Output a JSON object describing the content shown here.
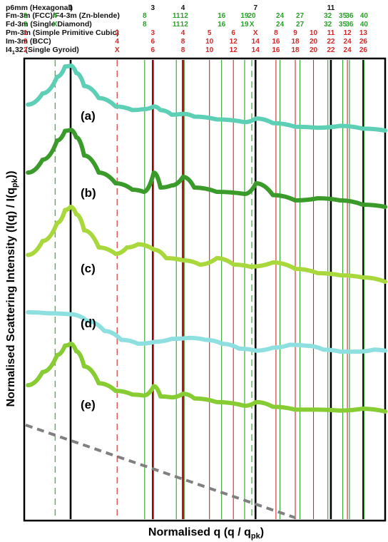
{
  "chart_data": {
    "type": "line",
    "xlabel": "Normalised q (q / q",
    "xlabel_sub": "pk",
    "xlabel_end": ")",
    "ylabel": "Normalised Scattering Intensity (I(q) / I(q",
    "ylabel_sub": "pk",
    "ylabel_end": "))",
    "grid": false,
    "x_range": [
      0.6,
      3.8
    ],
    "phases": [
      {
        "name": "p6mm (Hexagonal)",
        "color": "#111111",
        "labels": [
          {
            "text": "1",
            "q": 1.0
          },
          {
            "text": "3",
            "q": 1.732
          },
          {
            "text": "4",
            "q": 2.0
          },
          {
            "text": "7",
            "q": 2.646
          },
          {
            "text": "11",
            "q": 3.317
          }
        ]
      },
      {
        "name": "Fm-3m (FCC)/F4-3m (Zn-blende)",
        "color": "#2ca02c",
        "labels": [
          {
            "text": "3",
            "q": 0.598
          },
          {
            "text": "4",
            "q": 0.862
          },
          {
            "text": "8",
            "q": 1.659
          },
          {
            "text": "11",
            "q": 1.941
          },
          {
            "text": "12",
            "q": 2.011
          },
          {
            "text": "16",
            "q": 2.344
          },
          {
            "text": "19",
            "q": 2.549
          },
          {
            "text": "20",
            "q": 2.613
          },
          {
            "text": "24",
            "q": 2.864
          },
          {
            "text": "27",
            "q": 3.042
          },
          {
            "text": "32",
            "q": 3.29
          },
          {
            "text": "35",
            "q": 3.423
          },
          {
            "text": "36",
            "q": 3.482
          },
          {
            "text": "40",
            "q": 3.612
          }
        ]
      },
      {
        "name": "Fd-3m (Single Diamond)",
        "color": "#2ca02c",
        "labels": [
          {
            "text": "3",
            "q": 0.598
          },
          {
            "text": "X",
            "q": 0.862
          },
          {
            "text": "8",
            "q": 1.659
          },
          {
            "text": "11",
            "q": 1.941
          },
          {
            "text": "12",
            "q": 2.011
          },
          {
            "text": "16",
            "q": 2.344
          },
          {
            "text": "19",
            "q": 2.549
          },
          {
            "text": "X",
            "q": 2.613
          },
          {
            "text": "24",
            "q": 2.864
          },
          {
            "text": "27",
            "q": 3.042
          },
          {
            "text": "32",
            "q": 3.29
          },
          {
            "text": "35",
            "q": 3.423
          },
          {
            "text": "36",
            "q": 3.482
          },
          {
            "text": "40",
            "q": 3.612
          }
        ]
      },
      {
        "name": "Pm-3m (Simple Primitive Cubic)",
        "color": "#d62728",
        "labels": [
          {
            "text": "1",
            "q": 0.598
          },
          {
            "text": "2",
            "q": 1.414
          },
          {
            "text": "3",
            "q": 1.732
          },
          {
            "text": "4",
            "q": 2.0
          },
          {
            "text": "5",
            "q": 2.236
          },
          {
            "text": "6",
            "q": 2.449
          },
          {
            "text": "X",
            "q": 2.646
          },
          {
            "text": "8",
            "q": 2.828
          },
          {
            "text": "9",
            "q": 3.0
          },
          {
            "text": "10",
            "q": 3.162
          },
          {
            "text": "11",
            "q": 3.317
          },
          {
            "text": "12",
            "q": 3.464
          },
          {
            "text": "13",
            "q": 3.606
          }
        ]
      },
      {
        "name": "Im-3m (BCC)",
        "color": "#d62728",
        "labels": [
          {
            "text": "2",
            "q": 0.598
          },
          {
            "text": "4",
            "q": 1.414
          },
          {
            "text": "6",
            "q": 1.732
          },
          {
            "text": "8",
            "q": 2.0
          },
          {
            "text": "10",
            "q": 2.236
          },
          {
            "text": "12",
            "q": 2.449
          },
          {
            "text": "14",
            "q": 2.646
          },
          {
            "text": "16",
            "q": 2.828
          },
          {
            "text": "18",
            "q": 3.0
          },
          {
            "text": "20",
            "q": 3.162
          },
          {
            "text": "22",
            "q": 3.317
          },
          {
            "text": "24",
            "q": 3.464
          },
          {
            "text": "26",
            "q": 3.606
          }
        ]
      },
      {
        "name": "I4",
        "name_sub": "1",
        "name_end": "32 (Single Gyroid)",
        "color": "#d62728",
        "labels": [
          {
            "text": "2",
            "q": 0.598
          },
          {
            "text": "X",
            "q": 1.414
          },
          {
            "text": "6",
            "q": 1.732
          },
          {
            "text": "8",
            "q": 2.0
          },
          {
            "text": "10",
            "q": 2.236
          },
          {
            "text": "12",
            "q": 2.449
          },
          {
            "text": "14",
            "q": 2.646
          },
          {
            "text": "16",
            "q": 2.828
          },
          {
            "text": "18",
            "q": 3.0
          },
          {
            "text": "20",
            "q": 3.162
          },
          {
            "text": "22",
            "q": 3.317
          },
          {
            "text": "24",
            "q": 3.464
          },
          {
            "text": "26",
            "q": 3.606
          }
        ]
      }
    ],
    "reference_lines": [
      {
        "q": 1.0,
        "color": "#000000",
        "style": "solid",
        "weight": "heavy"
      },
      {
        "q": 1.732,
        "color": "#000000",
        "style": "solid",
        "weight": "heavy"
      },
      {
        "q": 2.0,
        "color": "#000000",
        "style": "solid",
        "weight": "heavy"
      },
      {
        "q": 2.646,
        "color": "#000000",
        "style": "solid",
        "weight": "heavy"
      },
      {
        "q": 3.317,
        "color": "#000000",
        "style": "solid",
        "weight": "heavy"
      },
      {
        "q": 3.606,
        "color": "#000000",
        "style": "solid",
        "weight": "heavy"
      },
      {
        "q": 0.862,
        "color": "#2ca02c",
        "style": "dashed",
        "weight": "light"
      },
      {
        "q": 1.414,
        "color": "#d62728",
        "style": "dashed",
        "weight": "light"
      },
      {
        "q": 2.613,
        "color": "#2ca02c",
        "style": "dashed",
        "weight": "light"
      },
      {
        "q": 1.659,
        "color": "#2ca02c",
        "style": "solid",
        "weight": "light"
      },
      {
        "q": 1.941,
        "color": "#2ca02c",
        "style": "solid",
        "weight": "light"
      },
      {
        "q": 2.011,
        "color": "#2ca02c",
        "style": "solid",
        "weight": "light"
      },
      {
        "q": 2.344,
        "color": "#2ca02c",
        "style": "solid",
        "weight": "light"
      },
      {
        "q": 2.549,
        "color": "#2ca02c",
        "style": "solid",
        "weight": "light"
      },
      {
        "q": 2.864,
        "color": "#2ca02c",
        "style": "solid",
        "weight": "light"
      },
      {
        "q": 3.042,
        "color": "#2ca02c",
        "style": "solid",
        "weight": "light"
      },
      {
        "q": 3.29,
        "color": "#2ca02c",
        "style": "solid",
        "weight": "light"
      },
      {
        "q": 3.423,
        "color": "#2ca02c",
        "style": "solid",
        "weight": "light"
      },
      {
        "q": 3.482,
        "color": "#2ca02c",
        "style": "solid",
        "weight": "light"
      },
      {
        "q": 3.612,
        "color": "#2ca02c",
        "style": "solid",
        "weight": "light"
      },
      {
        "q": 1.732,
        "color": "#d62728",
        "style": "solid",
        "weight": "light"
      },
      {
        "q": 2.0,
        "color": "#d62728",
        "style": "solid",
        "weight": "light"
      },
      {
        "q": 2.236,
        "color": "#d62728",
        "style": "solid",
        "weight": "light"
      },
      {
        "q": 2.449,
        "color": "#d62728",
        "style": "solid",
        "weight": "light"
      },
      {
        "q": 2.828,
        "color": "#d62728",
        "style": "solid",
        "weight": "light"
      },
      {
        "q": 3.0,
        "color": "#d62728",
        "style": "solid",
        "weight": "light"
      },
      {
        "q": 3.162,
        "color": "#d62728",
        "style": "solid",
        "weight": "light"
      },
      {
        "q": 3.464,
        "color": "#d62728",
        "style": "solid",
        "weight": "light"
      }
    ],
    "series": [
      {
        "name": "(a)",
        "color": "#5ccfb5",
        "x": [
          0.62,
          0.75,
          0.88,
          0.95,
          1.0,
          1.05,
          1.12,
          1.25,
          1.4,
          1.55,
          1.65,
          1.74,
          1.8,
          1.9,
          2.0,
          2.1,
          2.3,
          2.55,
          2.65,
          2.8,
          3.0,
          3.2,
          3.4,
          3.6,
          3.8
        ],
        "y": [
          0.58,
          0.7,
          0.88,
          0.99,
          1.0,
          0.92,
          0.78,
          0.65,
          0.56,
          0.52,
          0.53,
          0.56,
          0.52,
          0.47,
          0.48,
          0.45,
          0.42,
          0.39,
          0.43,
          0.38,
          0.34,
          0.33,
          0.35,
          0.32,
          0.3
        ]
      },
      {
        "name": "(b)",
        "color": "#3a9a2a",
        "x": [
          0.62,
          0.75,
          0.88,
          0.95,
          1.0,
          1.05,
          1.12,
          1.25,
          1.4,
          1.55,
          1.65,
          1.74,
          1.8,
          1.9,
          2.0,
          2.1,
          2.3,
          2.55,
          2.65,
          2.8,
          3.0,
          3.2,
          3.4,
          3.6,
          3.8
        ],
        "y": [
          0.6,
          0.72,
          0.9,
          0.99,
          1.0,
          0.93,
          0.76,
          0.6,
          0.5,
          0.44,
          0.42,
          0.6,
          0.46,
          0.48,
          0.56,
          0.46,
          0.42,
          0.4,
          0.5,
          0.39,
          0.34,
          0.36,
          0.34,
          0.3,
          0.28
        ]
      },
      {
        "name": "(c)",
        "color": "#a8d83c",
        "x": [
          0.62,
          0.75,
          0.88,
          0.95,
          1.0,
          1.05,
          1.12,
          1.25,
          1.4,
          1.5,
          1.6,
          1.74,
          1.85,
          2.0,
          2.15,
          2.3,
          2.45,
          2.6,
          2.8,
          3.0,
          3.2,
          3.4,
          3.6,
          3.8
        ],
        "y": [
          0.55,
          0.68,
          0.85,
          0.97,
          1.0,
          0.93,
          0.78,
          0.62,
          0.56,
          0.62,
          0.65,
          0.6,
          0.52,
          0.5,
          0.46,
          0.52,
          0.46,
          0.44,
          0.48,
          0.42,
          0.38,
          0.36,
          0.34,
          0.3
        ]
      },
      {
        "name": "(d)",
        "color": "#8ee0e0",
        "x": [
          0.62,
          0.8,
          1.0,
          1.15,
          1.3,
          1.45,
          1.6,
          1.75,
          1.9,
          2.05,
          2.2,
          2.35,
          2.5,
          2.65,
          2.8,
          2.95,
          3.1,
          3.25,
          3.4,
          3.55,
          3.7,
          3.8
        ],
        "y": [
          0.74,
          0.73,
          0.72,
          0.65,
          0.55,
          0.46,
          0.42,
          0.44,
          0.47,
          0.48,
          0.46,
          0.42,
          0.37,
          0.35,
          0.38,
          0.41,
          0.4,
          0.36,
          0.34,
          0.34,
          0.36,
          0.35
        ]
      },
      {
        "name": "(e)",
        "color": "#88cc33",
        "x": [
          0.62,
          0.75,
          0.88,
          0.95,
          1.0,
          1.05,
          1.12,
          1.25,
          1.4,
          1.55,
          1.65,
          1.74,
          1.8,
          1.9,
          2.0,
          2.1,
          2.3,
          2.55,
          2.65,
          2.8,
          3.0,
          3.2,
          3.4,
          3.6,
          3.8
        ],
        "y": [
          0.56,
          0.7,
          0.88,
          0.98,
          1.0,
          0.92,
          0.76,
          0.58,
          0.5,
          0.46,
          0.45,
          0.55,
          0.44,
          0.43,
          0.47,
          0.42,
          0.38,
          0.34,
          0.38,
          0.33,
          0.3,
          0.3,
          0.29,
          0.31,
          0.28
        ]
      }
    ],
    "baseline": {
      "style": "dashed",
      "color": "#808080",
      "x": [
        0.6,
        3.0
      ]
    }
  }
}
